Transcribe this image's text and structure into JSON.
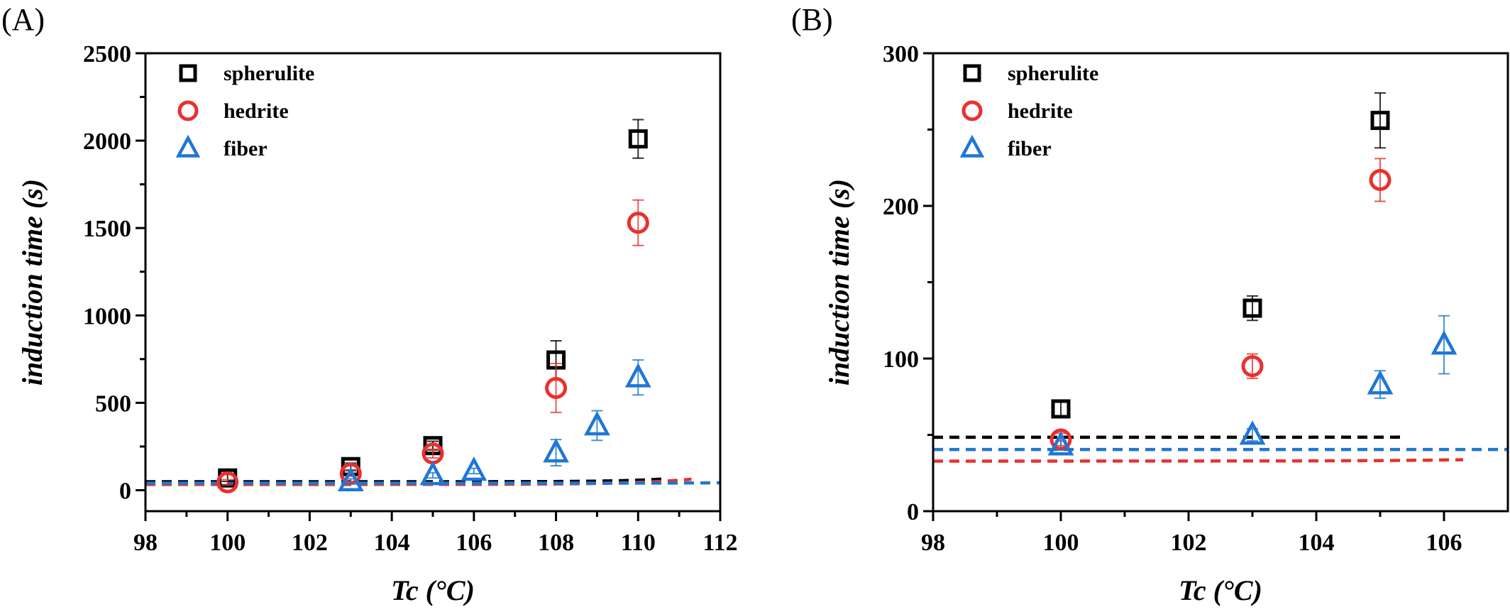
{
  "chart_data": [
    {
      "panel": "(A)",
      "type": "scatter",
      "xlabel": "Tc (°C)",
      "ylabel": "induction time (s)",
      "xlim": [
        98,
        112
      ],
      "ylim": [
        -120,
        2500
      ],
      "xticks": [
        98,
        100,
        102,
        104,
        106,
        108,
        110,
        112
      ],
      "yticks": [
        0,
        500,
        1000,
        1500,
        2000,
        2500
      ],
      "legend_position": "top-left",
      "series": [
        {
          "name": "spherulite",
          "marker": "square",
          "color": "#000000",
          "x": [
            100,
            103,
            105,
            108,
            110
          ],
          "y": [
            70,
            135,
            255,
            745,
            2010
          ],
          "err": [
            20,
            20,
            25,
            110,
            110
          ],
          "fit": {
            "y0": 48.4,
            "A": 0.00122,
            "t": 1.12,
            "xmax": 110.7
          }
        },
        {
          "name": "hedrite",
          "marker": "circle",
          "color": "#e8312f",
          "x": [
            100,
            103,
            105,
            108,
            110
          ],
          "y": [
            45,
            95,
            210,
            585,
            1530
          ],
          "err": [
            15,
            15,
            25,
            140,
            130
          ],
          "fit": {
            "y0": 32.8,
            "A": 0.0112,
            "t": 1.43,
            "xmax": 111.3
          }
        },
        {
          "name": "fiber",
          "marker": "triangle",
          "color": "#1f77d4",
          "x": [
            103,
            105,
            106,
            108,
            109,
            110
          ],
          "y": [
            50,
            85,
            110,
            215,
            370,
            645
          ],
          "err": [
            15,
            15,
            15,
            75,
            85,
            100
          ],
          "fit": {
            "y0": 40.4,
            "A": 1.35e-07,
            "t": 0.723,
            "xmax": 112
          }
        }
      ]
    },
    {
      "panel": "(B)",
      "type": "scatter",
      "xlabel": "Tc (°C)",
      "ylabel": "induction time (s)",
      "xlim": [
        98,
        107
      ],
      "ylim": [
        0,
        300
      ],
      "xticks": [
        98,
        100,
        102,
        104,
        106
      ],
      "yticks": [
        0,
        100,
        200,
        300
      ],
      "legend_position": "top-left",
      "series": [
        {
          "name": "spherulite",
          "marker": "square",
          "color": "#000000",
          "x": [
            100,
            103,
            105
          ],
          "y": [
            67,
            133,
            256
          ],
          "err": [
            5,
            8,
            18
          ],
          "fit": {
            "y0": 48.4,
            "A": 0.00122,
            "t": 1.12,
            "xmax": 105.4
          }
        },
        {
          "name": "hedrite",
          "marker": "circle",
          "color": "#e8312f",
          "x": [
            100,
            103,
            105
          ],
          "y": [
            47,
            95,
            217
          ],
          "err": [
            4,
            8,
            14
          ],
          "fit": {
            "y0": 32.8,
            "A": 0.0112,
            "t": 1.43,
            "xmax": 106.3
          }
        },
        {
          "name": "fiber",
          "marker": "triangle",
          "color": "#1f77d4",
          "x": [
            100,
            103,
            105,
            106
          ],
          "y": [
            43,
            50,
            83,
            109
          ],
          "err": [
            3,
            4,
            9,
            19
          ],
          "fit": {
            "y0": 40.4,
            "A": 1.35e-07,
            "t": 0.723,
            "xmax": 107
          }
        }
      ]
    }
  ]
}
